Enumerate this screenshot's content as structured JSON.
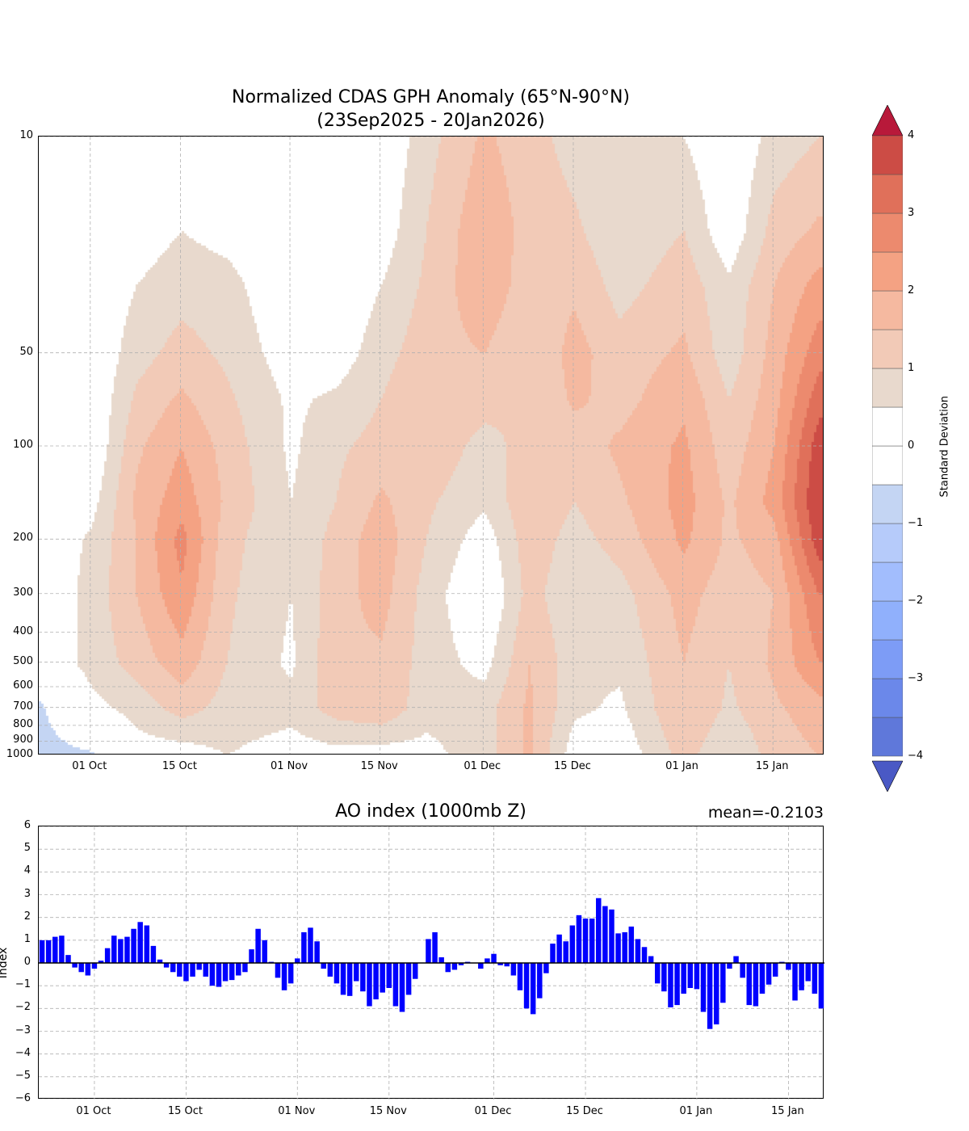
{
  "chart_data": [
    {
      "type": "heatmap",
      "title_line1": "Normalized CDAS GPH Anomaly (65°N-90°N)",
      "title_line2": "(23Sep2025 - 20Jan2026)",
      "ylabel": "",
      "y_scale": "log",
      "ylim": [
        1000,
        10
      ],
      "y_ticks": [
        "10",
        "50",
        "100",
        "200",
        "300",
        "400",
        "500",
        "600",
        "700",
        "800",
        "900",
        "1000"
      ],
      "y_tick_values": [
        10,
        50,
        100,
        200,
        300,
        400,
        500,
        600,
        700,
        800,
        900,
        1000
      ],
      "x_ticks": [
        "01 Oct",
        "15 Oct",
        "01 Nov",
        "15 Nov",
        "01 Dec",
        "15 Dec",
        "01 Jan",
        "15 Jan"
      ],
      "x_tick_days": [
        8,
        22,
        39,
        53,
        69,
        83,
        100,
        114
      ],
      "xlim_days": [
        0,
        122
      ],
      "grid": true,
      "field_days": [
        0,
        8,
        15,
        22,
        29,
        39,
        46,
        53,
        60,
        69,
        76,
        83,
        90,
        100,
        107,
        114,
        121
      ],
      "field_levels": [
        10,
        20,
        30,
        50,
        70,
        100,
        150,
        200,
        300,
        500,
        700,
        1000
      ],
      "field_values": [
        [
          0,
          0,
          0,
          0,
          0,
          0,
          0,
          0,
          0,
          0,
          -0.6,
          -0.7
        ],
        [
          0,
          0,
          0,
          0,
          0,
          0,
          0.3,
          0.6,
          0.7,
          0.7,
          0.3,
          -0.6
        ],
        [
          0,
          0.2,
          0.5,
          0.8,
          1.1,
          1.4,
          1.6,
          1.5,
          1.5,
          1.2,
          0.7,
          0.2
        ],
        [
          0,
          0.5,
          0.8,
          1.2,
          1.6,
          2.0,
          2.3,
          2.7,
          2.4,
          1.8,
          1.2,
          0.2
        ],
        [
          0,
          0.3,
          0.7,
          0.9,
          1.1,
          1.3,
          1.4,
          1.2,
          1.1,
          1.0,
          0.8,
          0.5
        ],
        [
          0,
          0,
          0,
          0.2,
          0.4,
          0.4,
          0.5,
          0.5,
          0.5,
          0.4,
          0.7,
          0.2
        ],
        [
          0,
          0,
          0,
          0.2,
          0.6,
          0.9,
          1.0,
          1.2,
          1.3,
          1.4,
          1.2,
          0.3
        ],
        [
          0,
          0.2,
          0.5,
          0.8,
          1.0,
          1.2,
          1.6,
          1.8,
          1.7,
          1.4,
          1.4,
          0.2
        ],
        [
          0.8,
          1.0,
          1.1,
          1.3,
          1.5,
          1.4,
          1.1,
          1.0,
          0.8,
          0.8,
          0.7,
          0.3
        ],
        [
          1.6,
          1.9,
          1.9,
          1.5,
          1.2,
          0.8,
          0.6,
          0.2,
          -0.1,
          0.3,
          0.8,
          0.8
        ],
        [
          1.2,
          1.3,
          1.2,
          1.0,
          1.0,
          1.2,
          1.4,
          1.3,
          1.2,
          1.5,
          1.6,
          1.6
        ],
        [
          0.8,
          1.1,
          1.4,
          1.7,
          1.6,
          1.2,
          1.0,
          0.8,
          0.6,
          0.7,
          0.6,
          0.2
        ],
        [
          0.5,
          0.6,
          0.8,
          1.2,
          1.3,
          1.6,
          1.4,
          1.2,
          0.8,
          0.6,
          0.4,
          0.1
        ],
        [
          0.5,
          1.0,
          1.3,
          1.6,
          1.9,
          2.1,
          2.2,
          2.1,
          1.7,
          1.5,
          1.5,
          1.2
        ],
        [
          0,
          0.1,
          0.6,
          0.7,
          1.0,
          1.2,
          1.4,
          1.4,
          1.2,
          1.0,
          0.9,
          0.5
        ],
        [
          0.7,
          1.2,
          1.5,
          1.7,
          1.8,
          2.0,
          2.2,
          1.8,
          1.5,
          1.6,
          1.4,
          1.2
        ],
        [
          1.0,
          1.6,
          2.2,
          2.8,
          3.3,
          3.8,
          4.0,
          3.8,
          3.0,
          2.5,
          1.8,
          1.5
        ]
      ],
      "colorbar": {
        "label": "Standard Deviation",
        "ticks": [
          "4",
          "3",
          "2",
          "1",
          "0",
          "−1",
          "−2",
          "−3",
          "−4"
        ],
        "tick_values": [
          4,
          3,
          2,
          1,
          0,
          -1,
          -2,
          -3,
          -4
        ],
        "levels": [
          -4,
          -3.5,
          -3,
          -2.5,
          -2,
          -1.5,
          -1,
          -0.5,
          0,
          0.5,
          1,
          1.5,
          2,
          2.5,
          3,
          3.5,
          4
        ],
        "colors": [
          "#5f78da",
          "#6b88ea",
          "#7d9cf6",
          "#90b0fc",
          "#a2bdfd",
          "#b6cbfa",
          "#c4d5f3",
          "#ffffff",
          "#ffffff",
          "#e8d9cd",
          "#f2cab7",
          "#f5b9a0",
          "#f4a283",
          "#ec8a6e",
          "#e0705a",
          "#cc4c45"
        ],
        "over_color": "#b8193a",
        "under_color": "#4a59c5"
      }
    },
    {
      "type": "bar",
      "title": "AO index (1000mb Z)",
      "annotation": "mean=-0.2103",
      "ylabel": "Index",
      "ylim": [
        -6,
        6
      ],
      "y_ticks": [
        "6",
        "5",
        "4",
        "3",
        "2",
        "1",
        "0",
        "−1",
        "−2",
        "−3",
        "−4",
        "−5",
        "−6"
      ],
      "y_tick_values": [
        6,
        5,
        4,
        3,
        2,
        1,
        0,
        -1,
        -2,
        -3,
        -4,
        -5,
        -6
      ],
      "x_ticks": [
        "01 Oct",
        "15 Oct",
        "01 Nov",
        "15 Nov",
        "01 Dec",
        "15 Dec",
        "01 Jan",
        "15 Jan"
      ],
      "x_tick_days": [
        8,
        22,
        39,
        53,
        69,
        83,
        100,
        114
      ],
      "grid": true,
      "bar_color": "#0000ff",
      "start_date": "23Sep2025",
      "values": [
        1.0,
        1.0,
        1.15,
        1.2,
        0.35,
        -0.2,
        -0.4,
        -0.55,
        -0.25,
        0.1,
        0.65,
        1.2,
        1.05,
        1.15,
        1.5,
        1.8,
        1.65,
        0.75,
        0.15,
        -0.2,
        -0.4,
        -0.6,
        -0.8,
        -0.6,
        -0.3,
        -0.6,
        -1.0,
        -1.05,
        -0.8,
        -0.75,
        -0.55,
        -0.4,
        0.6,
        1.5,
        1.0,
        0.05,
        -0.65,
        -1.2,
        -0.9,
        0.2,
        1.35,
        1.55,
        0.95,
        -0.25,
        -0.6,
        -0.9,
        -1.4,
        -1.45,
        -0.8,
        -1.25,
        -1.9,
        -1.6,
        -1.3,
        -1.1,
        -1.9,
        -2.15,
        -1.4,
        -0.7,
        0.0,
        1.05,
        1.35,
        0.25,
        -0.4,
        -0.3,
        -0.1,
        0.05,
        0.0,
        -0.25,
        0.2,
        0.4,
        -0.1,
        -0.15,
        -0.55,
        -1.2,
        -2.0,
        -2.25,
        -1.55,
        -0.45,
        0.85,
        1.25,
        0.95,
        1.65,
        2.1,
        1.95,
        1.95,
        2.85,
        2.5,
        2.35,
        1.3,
        1.35,
        1.6,
        1.05,
        0.7,
        0.3,
        -0.9,
        -1.25,
        -1.95,
        -1.85,
        -1.35,
        -1.1,
        -1.15,
        -2.15,
        -2.9,
        -2.7,
        -1.75,
        -0.25,
        0.3,
        -0.65,
        -1.85,
        -1.9,
        -1.35,
        -0.95,
        -0.6,
        0.05,
        -0.3,
        -1.65,
        -1.2,
        -0.8,
        -1.35,
        -2.0
      ]
    }
  ]
}
